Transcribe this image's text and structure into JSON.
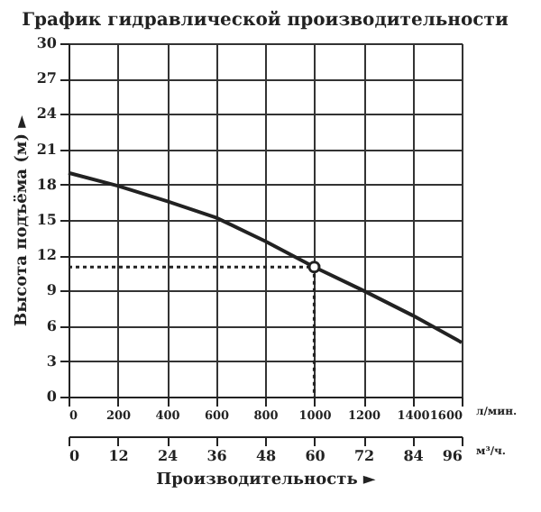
{
  "chart_data": {
    "type": "line",
    "title": "График гидравлической производительности",
    "xlabel": "Производительность ►",
    "ylabel": "Высота подъёма (м) ►",
    "xlim": [
      0,
      1600
    ],
    "xticks": [
      0,
      200,
      400,
      600,
      800,
      1000,
      1200,
      1400,
      1600
    ],
    "x2lim": [
      0,
      96
    ],
    "x2ticks": [
      0,
      12,
      24,
      36,
      48,
      60,
      72,
      84,
      96
    ],
    "ylim": [
      0,
      30
    ],
    "yticks": [
      0,
      3,
      6,
      9,
      12,
      15,
      18,
      21,
      24,
      27,
      30
    ],
    "grid": true,
    "annotations": [
      "л/мин.",
      "м³/ч."
    ],
    "series": [
      {
        "color": "#222222",
        "line_style": "solid",
        "marker": "none",
        "x": [
          0,
          200,
          400,
          600,
          800,
          1000,
          1200,
          1400,
          1600
        ],
        "values": [
          19,
          17.9,
          16.6,
          15.2,
          13.2,
          11,
          9,
          6.9,
          4.6
        ]
      },
      {
        "type": "line",
        "color": "#222222",
        "line_style": "dotted",
        "marker": "none",
        "x": [
          0,
          1000,
          1000
        ],
        "values": [
          11,
          11,
          0
        ]
      },
      {
        "type": "scatter",
        "color": "#222222",
        "marker": "circle",
        "x": [
          1000
        ],
        "values": [
          11
        ]
      }
    ]
  }
}
